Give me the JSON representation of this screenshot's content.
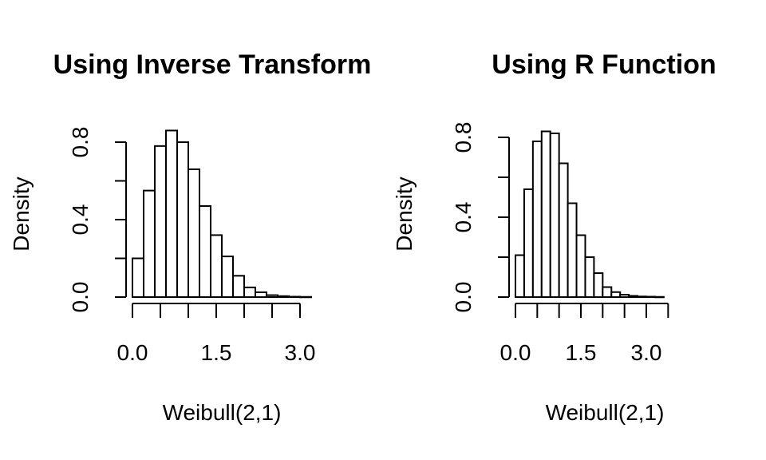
{
  "chart_data": [
    {
      "type": "bar",
      "title": "Using Inverse Transform",
      "xlabel": "Weibull(2,1)",
      "ylabel": "Density",
      "bin_width": 0.2,
      "bin_start": 0.0,
      "values": [
        0.2,
        0.55,
        0.78,
        0.86,
        0.8,
        0.66,
        0.47,
        0.32,
        0.21,
        0.11,
        0.05,
        0.025,
        0.01,
        0.005,
        0.002,
        0.001
      ],
      "xlim": [
        -0.15,
        3.1
      ],
      "ylim": [
        0,
        0.9
      ],
      "x_ticks": [
        0.0,
        0.5,
        1.0,
        1.5,
        2.0,
        2.5,
        3.0
      ],
      "x_tick_labels": [
        "0.0",
        "1.5",
        "3.0"
      ],
      "y_ticks": [
        0.0,
        0.2,
        0.4,
        0.6,
        0.8
      ],
      "y_tick_labels": [
        "0.0",
        "0.4",
        "0.8"
      ],
      "grid": false,
      "legend": "none"
    },
    {
      "type": "bar",
      "title": "Using R Function",
      "xlabel": "Weibull(2,1)",
      "ylabel": "Density",
      "bin_width": 0.2,
      "bin_start": 0.0,
      "values": [
        0.21,
        0.54,
        0.78,
        0.83,
        0.82,
        0.67,
        0.47,
        0.31,
        0.2,
        0.12,
        0.05,
        0.025,
        0.012,
        0.006,
        0.003,
        0.002,
        0.001
      ],
      "xlim": [
        -0.15,
        3.4
      ],
      "ylim": [
        0,
        0.9
      ],
      "x_ticks": [
        0.0,
        0.5,
        1.0,
        1.5,
        2.0,
        2.5,
        3.0,
        3.5
      ],
      "x_tick_labels": [
        "0.0",
        "1.5",
        "3.0"
      ],
      "y_ticks": [
        0.0,
        0.2,
        0.4,
        0.6,
        0.8
      ],
      "y_tick_labels": [
        "0.0",
        "0.4",
        "0.8"
      ],
      "grid": false,
      "legend": "none"
    }
  ]
}
